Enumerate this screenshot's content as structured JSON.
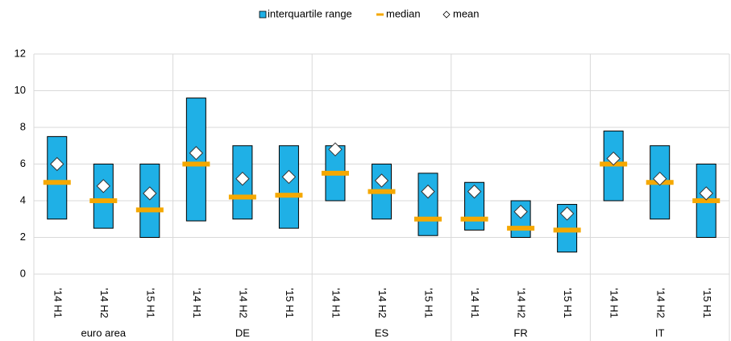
{
  "chart_data": {
    "type": "range-bar",
    "categories": [
      "'14 H1",
      "'14 H2",
      "'15 H1",
      "'14 H1",
      "'14 H2",
      "'15 H1",
      "'14 H1",
      "'14 H2",
      "'15 H1",
      "'14 H1",
      "'14 H2",
      "'15 H1",
      "'14 H1",
      "'14 H2",
      "'15 H1"
    ],
    "groups": [
      "euro area",
      "DE",
      "ES",
      "FR",
      "IT"
    ],
    "series": [
      {
        "name": "interquartile range",
        "color": "#1fb0e6",
        "low": [
          3,
          2.5,
          2,
          2.9,
          3,
          2.5,
          4,
          3,
          2.1,
          2.4,
          2,
          1.2,
          4,
          3,
          2
        ],
        "high": [
          7.5,
          6,
          6,
          9.6,
          7,
          7,
          7,
          6,
          5.5,
          5,
          4,
          3.8,
          7.8,
          7,
          6
        ]
      },
      {
        "name": "median",
        "color": "#f5a800",
        "values": [
          5,
          4,
          3.5,
          6,
          4.2,
          4.3,
          5.5,
          4.5,
          3,
          3,
          2.5,
          2.4,
          6,
          5,
          4
        ]
      },
      {
        "name": "mean",
        "color": "#ffffff",
        "values": [
          6,
          4.8,
          4.4,
          6.6,
          5.2,
          5.3,
          6.8,
          5.1,
          4.5,
          4.5,
          3.4,
          3.3,
          6.3,
          5.2,
          4.4
        ]
      }
    ],
    "ylim": [
      0,
      12
    ],
    "yticks": [
      0,
      2,
      4,
      6,
      8,
      10,
      12
    ],
    "grid": true
  }
}
